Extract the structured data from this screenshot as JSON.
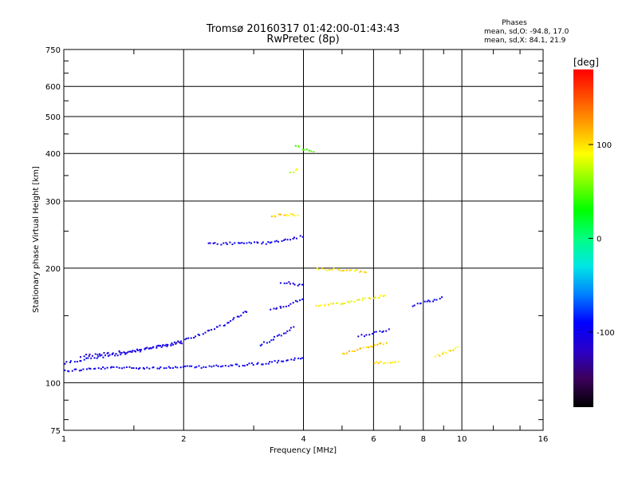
{
  "header": {
    "title": "Tromsø 20160317 01:42:00-01:43:43",
    "subtitle": "RwPretec (8p)"
  },
  "stats": {
    "heading": "Phases",
    "line_o": "mean, sd,O: -94.8, 17.0",
    "line_x": "mean, sd,X:  84.1, 21.9"
  },
  "colorbar": {
    "unit": "[deg]",
    "ticks": [
      {
        "value": 100,
        "label": "100"
      },
      {
        "value": 0,
        "label": "0"
      },
      {
        "value": -100,
        "label": "-100"
      }
    ],
    "range": [
      -180,
      180
    ],
    "stops": [
      "#000000",
      "#3c005a",
      "#2a00c8",
      "#0000ff",
      "#0080ff",
      "#00e6e6",
      "#00ff80",
      "#00ff00",
      "#80ff00",
      "#ffff00",
      "#ffa500",
      "#ff5000",
      "#ff0000"
    ]
  },
  "chart_data": {
    "type": "scatter",
    "title": "Tromsø 20160317 01:42:00-01:43:43",
    "subtitle": "RwPretec (8p)",
    "xlabel": "Frequency [MHz]",
    "ylabel": "Stationary phase Virtual Height [km]",
    "x_scale": "log",
    "y_scale": "log",
    "xlim": [
      1,
      16
    ],
    "ylim": [
      75,
      750
    ],
    "x_ticks": [
      1,
      2,
      4,
      6,
      8,
      10,
      16
    ],
    "x_tick_labels": [
      "1",
      "2",
      "4",
      "6",
      "8",
      "10",
      "16"
    ],
    "y_ticks": [
      75,
      100,
      200,
      300,
      400,
      500,
      600,
      750
    ],
    "y_tick_labels": [
      "75",
      "100",
      "200",
      "300",
      "400",
      "500",
      "600",
      "750"
    ],
    "grid": true,
    "color_variable": "phase [deg]",
    "traces": [
      {
        "x": [
          1.0,
          1.3,
          1.8,
          2.5,
          3.2,
          3.8,
          4.0
        ],
        "y": [
          108,
          110,
          110,
          111,
          113,
          116,
          117
        ],
        "phase": -100
      },
      {
        "x": [
          1.0,
          1.2,
          1.5,
          2.0,
          2.5,
          2.9
        ],
        "y": [
          113,
          117,
          121,
          130,
          142,
          156
        ],
        "phase": -100
      },
      {
        "x": [
          1.1,
          1.5,
          2.0
        ],
        "y": [
          118,
          122,
          128
        ],
        "phase": -110
      },
      {
        "x": [
          3.1,
          3.3,
          3.6,
          3.8
        ],
        "y": [
          126,
          130,
          136,
          142
        ],
        "phase": -100
      },
      {
        "x": [
          3.3,
          3.6,
          3.8,
          4.0
        ],
        "y": [
          156,
          160,
          164,
          168
        ],
        "phase": -100
      },
      {
        "x": [
          2.3,
          2.8,
          3.2,
          3.6,
          4.0
        ],
        "y": [
          232,
          234,
          234,
          238,
          244
        ],
        "phase": -100
      },
      {
        "x": [
          3.5,
          3.7,
          3.8,
          4.0
        ],
        "y": [
          185,
          183,
          182,
          182
        ],
        "phase": -110
      },
      {
        "x": [
          4.3,
          4.7,
          5.2,
          5.8
        ],
        "y": [
          200,
          199,
          198,
          196
        ],
        "phase": 100
      },
      {
        "x": [
          5.0,
          5.5,
          6.0,
          6.5
        ],
        "y": [
          120,
          123,
          126,
          128
        ],
        "phase": 110
      },
      {
        "x": [
          5.5,
          6.0,
          6.6
        ],
        "y": [
          133,
          136,
          139
        ],
        "phase": -100
      },
      {
        "x": [
          4.3,
          5.0,
          5.8,
          6.5
        ],
        "y": [
          160,
          163,
          167,
          170
        ],
        "phase": 90
      },
      {
        "x": [
          7.5,
          8.0,
          8.5,
          9.0
        ],
        "y": [
          160,
          163,
          166,
          168
        ],
        "phase": -100
      },
      {
        "x": [
          8.5,
          9.0,
          9.5,
          9.9
        ],
        "y": [
          118,
          120,
          123,
          126
        ],
        "phase": 100
      },
      {
        "x": [
          3.8,
          4.0,
          4.3
        ],
        "y": [
          420,
          410,
          405
        ],
        "phase": 50
      },
      {
        "x": [
          3.7,
          3.9
        ],
        "y": [
          360,
          364
        ],
        "phase": 80
      },
      {
        "x": [
          3.3,
          3.6,
          3.9
        ],
        "y": [
          275,
          278,
          276
        ],
        "phase": 100
      },
      {
        "x": [
          6.0,
          6.5,
          7.0
        ],
        "y": [
          113,
          114,
          114
        ],
        "phase": 100
      }
    ]
  }
}
